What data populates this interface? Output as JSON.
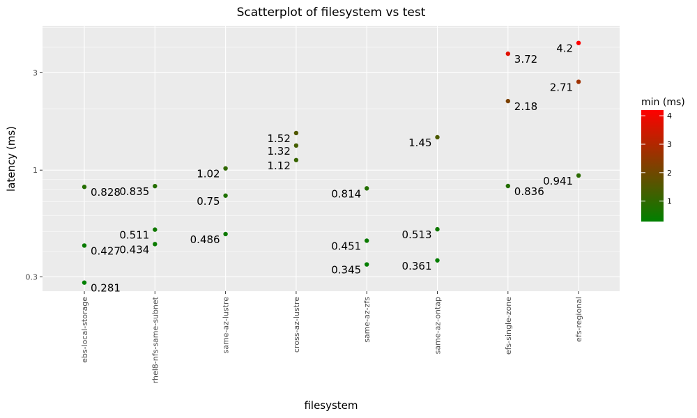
{
  "chart_data": {
    "type": "scatter",
    "title": "Scatterplot of filesystem vs test",
    "xlabel": "filesystem",
    "ylabel": "latency (ms)",
    "y_scale": "log10",
    "ylim": [
      0.255,
      5.1
    ],
    "y_ticks": [
      0.3,
      1,
      3
    ],
    "categories": [
      "ebs-local-storage",
      "rhel8-nfs-same-subnet",
      "same-az-lustre",
      "cross-az-lustre",
      "same-az-zfs",
      "same-az-ontap",
      "efs-single-zone",
      "efs-regional"
    ],
    "points": [
      {
        "x": "ebs-local-storage",
        "y": 0.828,
        "label": "0.828",
        "side": "right"
      },
      {
        "x": "ebs-local-storage",
        "y": 0.427,
        "label": "0.427",
        "side": "right"
      },
      {
        "x": "ebs-local-storage",
        "y": 0.281,
        "label": "0.281",
        "side": "right"
      },
      {
        "x": "rhel8-nfs-same-subnet",
        "y": 0.835,
        "label": "0.835",
        "side": "left"
      },
      {
        "x": "rhel8-nfs-same-subnet",
        "y": 0.511,
        "label": "0.511",
        "side": "left"
      },
      {
        "x": "rhel8-nfs-same-subnet",
        "y": 0.434,
        "label": "0.434",
        "side": "left"
      },
      {
        "x": "same-az-lustre",
        "y": 1.02,
        "label": "1.02",
        "side": "left"
      },
      {
        "x": "same-az-lustre",
        "y": 0.75,
        "label": "0.75",
        "side": "left"
      },
      {
        "x": "same-az-lustre",
        "y": 0.486,
        "label": "0.486",
        "side": "left"
      },
      {
        "x": "cross-az-lustre",
        "y": 1.52,
        "label": "1.52",
        "side": "left"
      },
      {
        "x": "cross-az-lustre",
        "y": 1.32,
        "label": "1.32",
        "side": "left"
      },
      {
        "x": "cross-az-lustre",
        "y": 1.12,
        "label": "1.12",
        "side": "left"
      },
      {
        "x": "same-az-zfs",
        "y": 0.814,
        "label": "0.814",
        "side": "left"
      },
      {
        "x": "same-az-zfs",
        "y": 0.451,
        "label": "0.451",
        "side": "left"
      },
      {
        "x": "same-az-zfs",
        "y": 0.345,
        "label": "0.345",
        "side": "left"
      },
      {
        "x": "same-az-ontap",
        "y": 1.45,
        "label": "1.45",
        "side": "left"
      },
      {
        "x": "same-az-ontap",
        "y": 0.513,
        "label": "0.513",
        "side": "left"
      },
      {
        "x": "same-az-ontap",
        "y": 0.361,
        "label": "0.361",
        "side": "left"
      },
      {
        "x": "efs-single-zone",
        "y": 3.72,
        "label": "3.72",
        "side": "right"
      },
      {
        "x": "efs-single-zone",
        "y": 2.18,
        "label": "2.18",
        "side": "right"
      },
      {
        "x": "efs-single-zone",
        "y": 0.836,
        "label": "0.836",
        "side": "right"
      },
      {
        "x": "efs-regional",
        "y": 4.2,
        "label": "4.2",
        "side": "left"
      },
      {
        "x": "efs-regional",
        "y": 2.71,
        "label": "2.71",
        "side": "left"
      },
      {
        "x": "efs-regional",
        "y": 0.941,
        "label": "0.941",
        "side": "left"
      }
    ],
    "color_scale": {
      "title": "min (ms)",
      "variable": "latency",
      "low_color": "#008000",
      "high_color": "#ff0000",
      "range": [
        0.281,
        4.2
      ],
      "ticks": [
        1,
        2,
        3,
        4
      ]
    },
    "grid": true,
    "panel_background": "#ebebeb",
    "legend_position": "right"
  }
}
